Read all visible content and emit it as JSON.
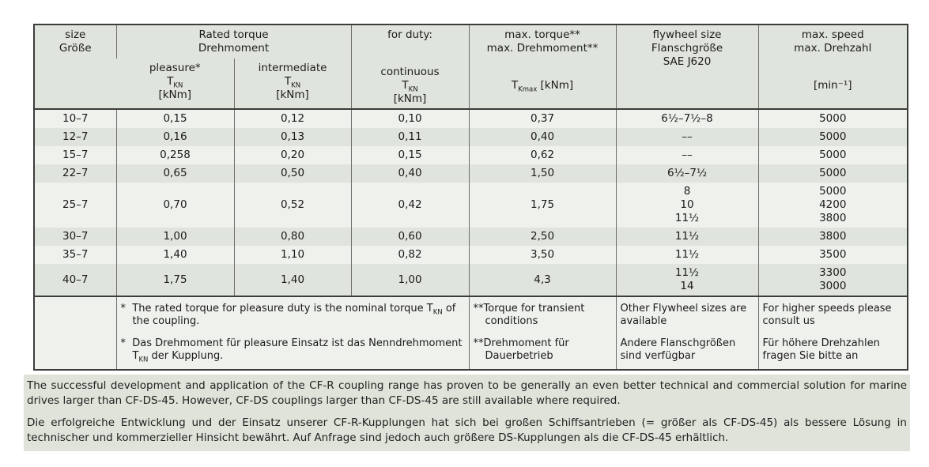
{
  "colors": {
    "row_light": "#eff1ec",
    "row_dark": "#dfe5dc",
    "paragraph_block_bg": "#dfe3da",
    "border_dark": "#3c3c3c",
    "border_mid": "#6f6f6f",
    "text": "#1b1b1b"
  },
  "table": {
    "header": {
      "size_en": "size",
      "size_de": "Größe",
      "rated_en": "Rated torque",
      "rated_de": "Drehmoment",
      "pleasure": "pleasure*",
      "intermediate": "intermediate",
      "for_duty": "for duty:",
      "continuous": "continuous",
      "t_symbol": "T",
      "tkn_sub": "KN",
      "tkmax_sub": "Kmax",
      "knm_unit": "[kNm]",
      "tkmax_unit": " [kNm]",
      "max_torque_en": "max. torque**",
      "max_torque_de": "max. Drehmoment**",
      "flywheel_en": "flywheel size",
      "flywheel_de": "Flanschgröße",
      "flywheel_std": "SAE J620",
      "speed_en": "max. speed",
      "speed_de": "max. Drehzahl",
      "speed_unit": "[min⁻¹]"
    },
    "rows": [
      {
        "size": "10–7",
        "pleasure": "0,15",
        "intermediate": "0,12",
        "continuous": "0,10",
        "max_torque": "0,37",
        "flywheel": "6½–7½–8",
        "speed": "5000"
      },
      {
        "size": "12–7",
        "pleasure": "0,16",
        "intermediate": "0,13",
        "continuous": "0,11",
        "max_torque": "0,40",
        "flywheel": "––",
        "speed": "5000"
      },
      {
        "size": "15–7",
        "pleasure": "0,258",
        "intermediate": "0,20",
        "continuous": "0,15",
        "max_torque": "0,62",
        "flywheel": "––",
        "speed": "5000"
      },
      {
        "size": "22–7",
        "pleasure": "0,65",
        "intermediate": "0,50",
        "continuous": "0,40",
        "max_torque": "1,50",
        "flywheel": "6½–7½",
        "speed": "5000"
      },
      {
        "size": "25–7",
        "pleasure": "0,70",
        "intermediate": "0,52",
        "continuous": "0,42",
        "max_torque": "1,75",
        "flywheel": "8\n10\n11½",
        "speed": "5000\n4200\n3800"
      },
      {
        "size": "30–7",
        "pleasure": "1,00",
        "intermediate": "0,80",
        "continuous": "0,60",
        "max_torque": "2,50",
        "flywheel": "11½",
        "speed": "3800"
      },
      {
        "size": "35–7",
        "pleasure": "1,40",
        "intermediate": "1,10",
        "continuous": "0,82",
        "max_torque": "3,50",
        "flywheel": "11½",
        "speed": "3500"
      },
      {
        "size": "40–7",
        "pleasure": "1,75",
        "intermediate": "1,40",
        "continuous": "1,00",
        "max_torque": "4,3",
        "flywheel": "11½\n14",
        "speed": "3300\n3000"
      }
    ],
    "footnotes": {
      "star": "*",
      "dstar": "**",
      "note1_text": "The rated torque for pleasure duty is the nominal torque T",
      "note1_sub": "KN",
      "note1_tail": " of the coupling.",
      "note2_text": "Das Drehmoment für pleasure Einsatz ist das Nenndrehmoment T",
      "note2_sub": "KN",
      "note2_tail": " der Kupplung.",
      "transient_en": "Torque for transient conditions",
      "transient_de": "Drehmoment für Dauerbetrieb",
      "flywheel_en": "Other Flywheel sizes are available",
      "flywheel_de": "Andere Flanschgrößen sind verfügbar",
      "speed_en": "For higher speeds please consult us",
      "speed_de": "Für höhere Drehzahlen fragen Sie bitte an"
    }
  },
  "paragraphs": {
    "en": "The successful development and application of the CF-R coupling range has proven to be generally an even better technical and commercial solution for marine drives larger than CF-DS-45. However, CF-DS couplings larger than CF-DS-45 are still available where required.",
    "de": "Die erfolgreiche Entwicklung und der Einsatz unserer CF-R-Kupplungen hat sich bei großen Schiffsantrieben (= größer als CF-DS-45) als bessere Lösung in technischer und kommerzieller Hinsicht bewährt. Auf Anfrage sind jedoch auch größere DS-Kupplungen als die CF-DS-45 erhältlich."
  }
}
